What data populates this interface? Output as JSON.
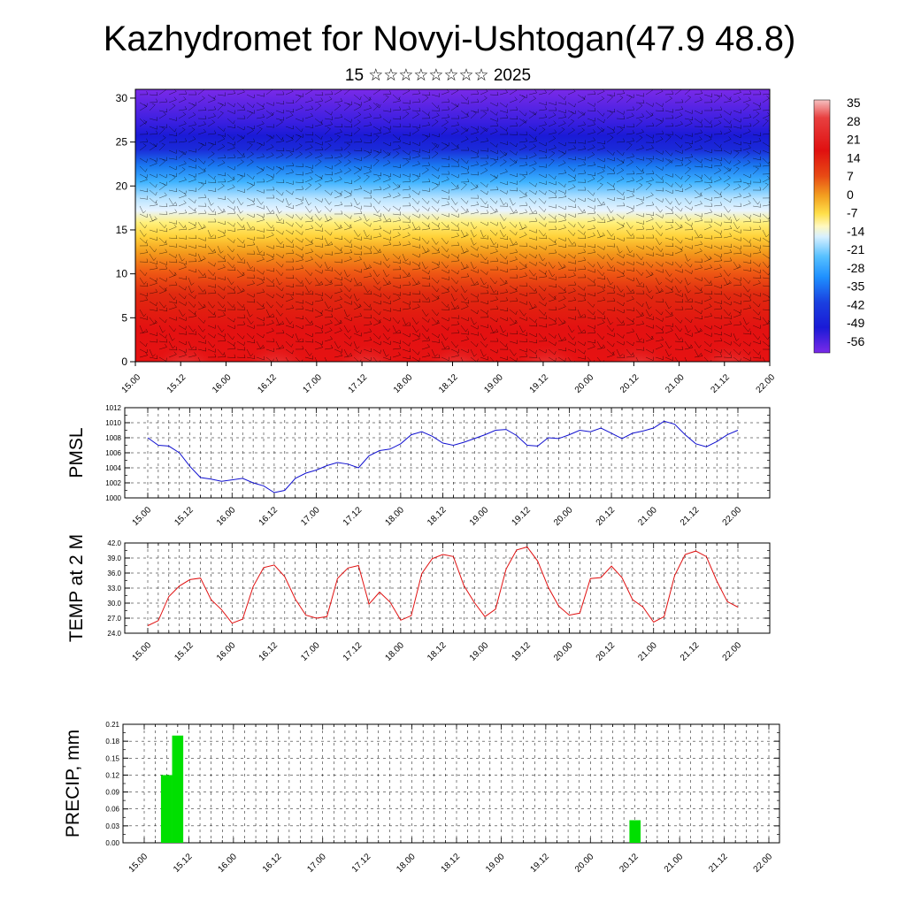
{
  "header": {
    "title": "Kazhydromet for Novyi-Ushtogan(47.9 48.8)",
    "subtitle": "15 ☆☆☆☆☆☆☆☆ 2025"
  },
  "chart_data": [
    {
      "id": "height-time-temperature",
      "type": "heatmap",
      "x_tick_labels": [
        "15.00",
        "15.12",
        "16.00",
        "16.12",
        "17.00",
        "17.12",
        "18.00",
        "18.12",
        "19.00",
        "19.12",
        "20.00",
        "20.12",
        "21.00",
        "21.12",
        "22.00"
      ],
      "y_ticks": [
        0,
        5,
        10,
        15,
        20,
        25,
        30
      ],
      "ylim": [
        0,
        31
      ],
      "colorbar_labels": [
        "35",
        "28",
        "21",
        "14",
        "7",
        "0",
        "-7",
        "-14",
        "-21",
        "-28",
        "-35",
        "-42",
        "-49",
        "-56"
      ],
      "colorbar_range": [
        -60,
        40
      ],
      "overlay": "wind barbs",
      "colors": {
        "cold": "#7a1fe8",
        "deep": "#1a1ad6",
        "blue": "#1e90ff",
        "light": "#bfe6ff",
        "yellow": "#ffe04a",
        "orange": "#f29a1c",
        "red": "#e01010",
        "warm": "#f3b0b0"
      }
    },
    {
      "id": "pmsl",
      "type": "line",
      "ylabel": "PMSL",
      "ylim": [
        1000,
        1012
      ],
      "y_ticks": [
        1000,
        1002,
        1004,
        1006,
        1008,
        1010,
        1012
      ],
      "x_tick_labels": [
        "15.00",
        "15.12",
        "16.00",
        "16.12",
        "17.00",
        "17.12",
        "18.00",
        "18.12",
        "19.00",
        "19.12",
        "20.00",
        "20.12",
        "21.00",
        "21.12",
        "22.00"
      ],
      "x_step_hours": 3,
      "values": [
        1008.0,
        1007.0,
        1006.9,
        1006.0,
        1004.2,
        1002.7,
        1002.5,
        1002.2,
        1002.4,
        1002.6,
        1002.0,
        1001.6,
        1000.7,
        1001.0,
        1002.6,
        1003.3,
        1003.7,
        1004.3,
        1004.7,
        1004.5,
        1004.0,
        1005.6,
        1006.3,
        1006.5,
        1007.2,
        1008.4,
        1008.8,
        1008.2,
        1007.3,
        1007.0,
        1007.4,
        1007.9,
        1008.4,
        1009.0,
        1009.1,
        1008.3,
        1007.0,
        1006.9,
        1008.0,
        1007.9,
        1008.4,
        1009.0,
        1008.8,
        1009.3,
        1008.6,
        1007.9,
        1008.6,
        1008.9,
        1009.3,
        1010.2,
        1009.8,
        1008.4,
        1007.2,
        1006.8,
        1007.5,
        1008.4,
        1009.0
      ],
      "line_color": "#1010d0"
    },
    {
      "id": "temp-2m",
      "type": "line",
      "ylabel": "TEMP at 2 M",
      "ylim": [
        24.0,
        42.0
      ],
      "y_tick_labels": [
        "24.0",
        "27.0",
        "30.0",
        "33.0",
        "36.0",
        "39.0",
        "42.0"
      ],
      "y_ticks": [
        24,
        27,
        30,
        33,
        36,
        39,
        42
      ],
      "x_tick_labels": [
        "15.00",
        "15.12",
        "16.00",
        "16.12",
        "17.00",
        "17.12",
        "18.00",
        "18.12",
        "19.00",
        "19.12",
        "20.00",
        "20.12",
        "21.00",
        "21.12",
        "22.00"
      ],
      "x_step_hours": 3,
      "values": [
        25.5,
        26.5,
        31.3,
        33.4,
        34.7,
        35.0,
        30.7,
        28.7,
        26.0,
        26.8,
        33.3,
        37.1,
        37.6,
        35.3,
        30.8,
        27.6,
        27.0,
        27.3,
        34.9,
        37.0,
        37.5,
        29.8,
        32.2,
        30.2,
        26.6,
        27.5,
        35.9,
        38.9,
        39.7,
        39.3,
        33.5,
        30.1,
        27.3,
        28.8,
        36.8,
        40.6,
        41.2,
        38.4,
        33.2,
        29.4,
        27.6,
        28.0,
        34.9,
        35.1,
        37.4,
        35.1,
        30.7,
        29.2,
        26.2,
        27.3,
        35.5,
        39.7,
        40.4,
        39.3,
        34.4,
        30.3,
        29.2
      ],
      "line_color": "#e01010"
    },
    {
      "id": "precip",
      "type": "bar",
      "ylabel": "PRECIP, mm",
      "ylim": [
        0,
        0.21
      ],
      "y_tick_labels": [
        "0.00",
        "0.03",
        "0.06",
        "0.09",
        "0.12",
        "0.15",
        "0.18",
        "0.21"
      ],
      "y_ticks": [
        0,
        0.03,
        0.06,
        0.09,
        0.12,
        0.15,
        0.18,
        0.21
      ],
      "x_tick_labels": [
        "15.00",
        "15.12",
        "16.00",
        "16.12",
        "17.00",
        "17.12",
        "18.00",
        "18.12",
        "19.00",
        "19.12",
        "20.00",
        "20.12",
        "21.00",
        "21.12",
        "22.00"
      ],
      "x_step_hours": 3,
      "bars": [
        {
          "index": 2,
          "value": 0.12
        },
        {
          "index": 3,
          "value": 0.19
        },
        {
          "index": 44,
          "value": 0.04
        }
      ],
      "bar_color": "#00e000"
    }
  ]
}
